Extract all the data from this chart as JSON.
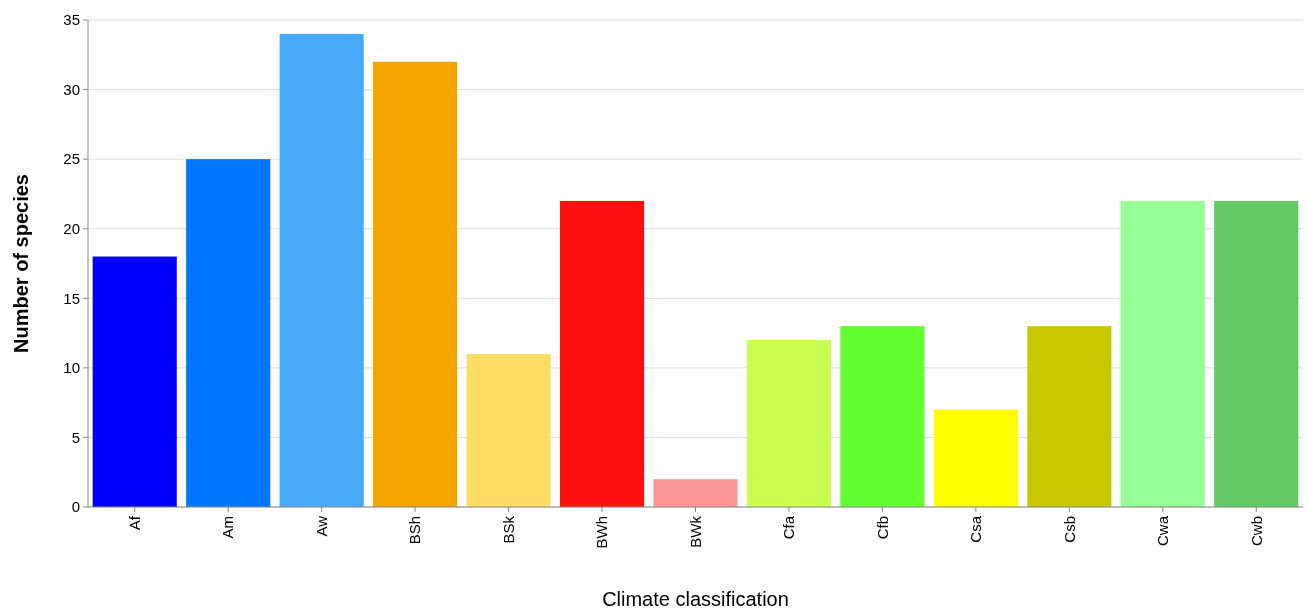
{
  "chart_data": {
    "type": "bar",
    "xlabel": "Climate classification",
    "ylabel": "Number of species",
    "categories": [
      "Af",
      "Am",
      "Aw",
      "BSh",
      "BSk",
      "BWh",
      "BWk",
      "Cfa",
      "Cfb",
      "Csa",
      "Csb",
      "Cwa",
      "Cwb"
    ],
    "values": [
      18,
      25,
      34,
      32,
      11,
      22,
      2,
      12,
      13,
      7,
      13,
      22,
      22
    ],
    "colors": [
      "#0000ff",
      "#0077ff",
      "#46a9fa",
      "#f5a500",
      "#ffdc64",
      "#ff1010",
      "#ff9696",
      "#c8ff50",
      "#64ff32",
      "#ffff00",
      "#c8c800",
      "#96ff96",
      "#64c864"
    ],
    "ylim": [
      0,
      35
    ],
    "yticks": [
      0,
      5,
      10,
      15,
      20,
      25,
      30,
      35
    ],
    "grid": "y"
  }
}
